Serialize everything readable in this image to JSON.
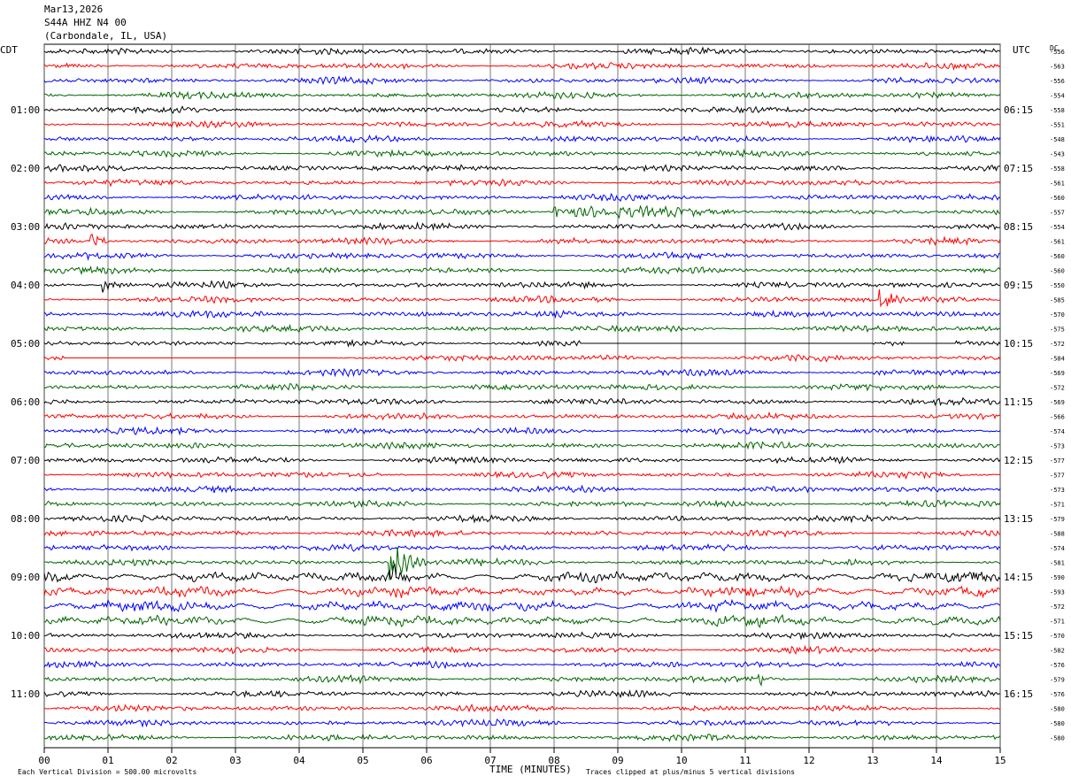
{
  "header": {
    "date": "Mar13,2026",
    "channel": "S44A HHZ N4 00",
    "location": "(Carbondale, IL, USA)"
  },
  "labels": {
    "left_tz": "CDT",
    "right_tz": "UTC",
    "dc": "DC",
    "xlabel": "TIME (MINUTES)",
    "scale_note": "Each Vertical Division =  500.00 microvolts",
    "clip_note": "Traces clipped at plus/minus 5 vertical divisions"
  },
  "colors": {
    "trace_cycle": [
      "#000000",
      "#ff0000",
      "#0000ff",
      "#006600"
    ],
    "grid": "#000000"
  },
  "chart_data": {
    "type": "line",
    "subtype": "helicorder",
    "xlim": [
      0,
      15
    ],
    "x_ticks": [
      "00",
      "01",
      "02",
      "03",
      "04",
      "05",
      "06",
      "07",
      "08",
      "09",
      "10",
      "11",
      "12",
      "13",
      "14",
      "15"
    ],
    "row_minutes": 15,
    "n_rows": 48,
    "left_hour_labels": [
      "01:00",
      "02:00",
      "03:00",
      "04:00",
      "05:00",
      "06:00",
      "07:00",
      "08:00",
      "09:00",
      "10:00",
      "11:00"
    ],
    "right_hour_labels": [
      "06:15",
      "07:15",
      "08:15",
      "09:15",
      "10:15",
      "11:15",
      "12:15",
      "13:15",
      "14:15",
      "15:15",
      "16:15"
    ],
    "dc_offsets": [
      "-556",
      "-563",
      "-556",
      "-554",
      "-558",
      "-551",
      "-548",
      "-543",
      "-558",
      "-561",
      "-560",
      "-557",
      "-554",
      "-561",
      "-560",
      "-560",
      "-550",
      "-585",
      "-570",
      "-575",
      "-572",
      "-584",
      "-569",
      "-572",
      "-569",
      "-566",
      "-574",
      "-573",
      "-577",
      "-577",
      "-573",
      "-571",
      "-579",
      "-588",
      "-574",
      "-581",
      "-590",
      "-593",
      "-572",
      "-571",
      "-570",
      "-582",
      "-576",
      "-579",
      "-576",
      "-580",
      "-580",
      "-580"
    ],
    "events": [
      {
        "row": 16,
        "minute": 0.9,
        "amp": 6,
        "dur": 0.5
      },
      {
        "row": 13,
        "minute": 0.7,
        "amp": 6,
        "dur": 0.4
      },
      {
        "row": 35,
        "minute": 5.4,
        "amp": 18,
        "dur": 0.6
      },
      {
        "row": 36,
        "minute": 5.4,
        "amp": 8,
        "dur": 0.3
      },
      {
        "row": 17,
        "minute": 13.1,
        "amp": 7,
        "dur": 0.4
      },
      {
        "row": 21,
        "minute": 3.4,
        "amp": 6,
        "dur": 0.3
      },
      {
        "row": 43,
        "minute": 11.2,
        "amp": 8,
        "dur": 0.1
      },
      {
        "row": 11,
        "minute": 8.0,
        "amp": 5,
        "dur": 2.5
      }
    ],
    "gaps": [
      {
        "row": 20,
        "from": 8.4,
        "to": 13.0
      },
      {
        "row": 20,
        "from": 13.5,
        "to": 14.3
      },
      {
        "row": 21,
        "from": 0.3,
        "to": 4.5
      }
    ]
  }
}
